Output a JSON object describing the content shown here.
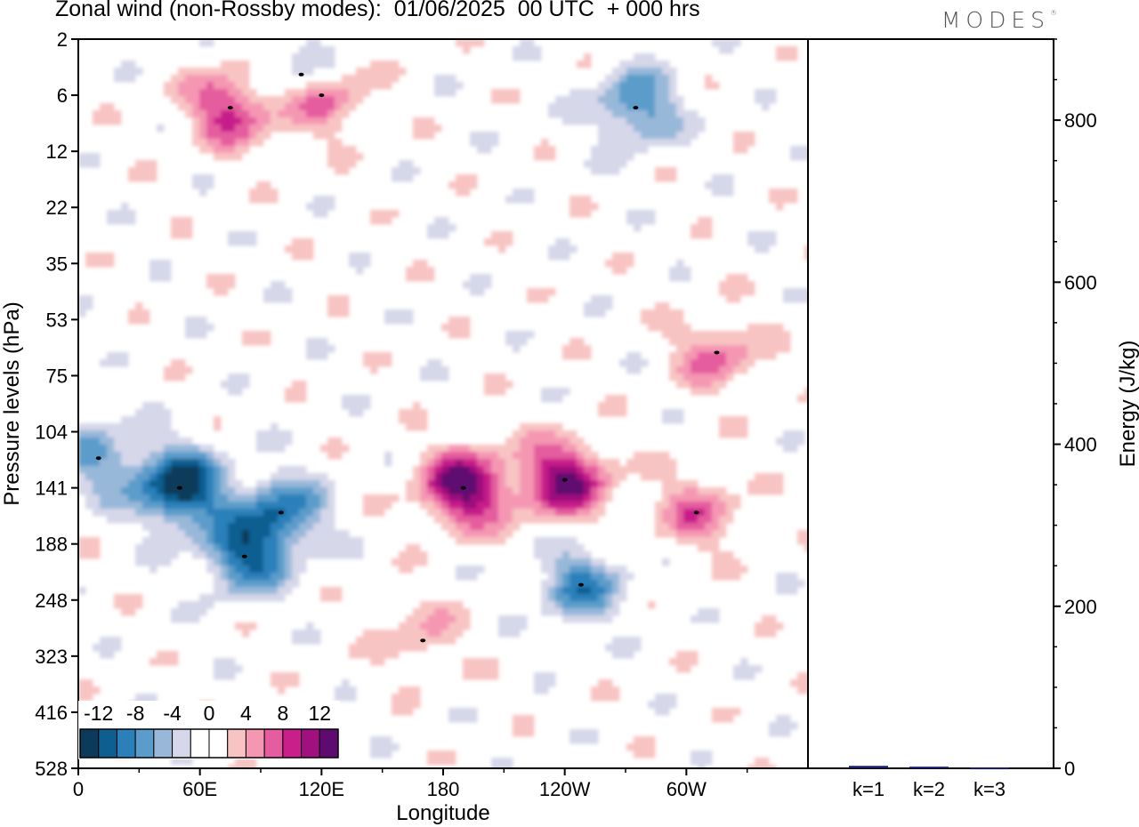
{
  "title": "Zonal wind (non-Rossby modes):  01/06/2025  00 UTC  + 000 hrs",
  "logo": "MODES",
  "logo_mark": "®",
  "chart_data": [
    {
      "type": "heatmap",
      "title": "Zonal wind (non-Rossby modes):  01/06/2025  00 UTC  + 000 hrs",
      "xlabel": "Longitude",
      "ylabel": "Pressure levels (hPa)",
      "x_ticks": [
        "0",
        "60E",
        "120E",
        "180",
        "120W",
        "60W"
      ],
      "x_tick_values": [
        0,
        60,
        120,
        180,
        240,
        300
      ],
      "xlim": [
        0,
        360
      ],
      "y_ticks": [
        "2",
        "6",
        "12",
        "22",
        "35",
        "53",
        "75",
        "104",
        "141",
        "188",
        "248",
        "323",
        "416",
        "528"
      ],
      "colorbar": {
        "labels": [
          "-12",
          "-8",
          "-4",
          "0",
          "4",
          "8",
          "12"
        ],
        "label_values": [
          -12,
          -8,
          -4,
          0,
          4,
          8,
          12
        ],
        "colors": [
          "#0b3a5a",
          "#0d5f92",
          "#2b80ba",
          "#5b9ccb",
          "#98b8d9",
          "#d6d7e9",
          "#ffffff",
          "#ffffff",
          "#f8c4c3",
          "#f597b3",
          "#e55d9e",
          "#c81f8a",
          "#a0107e",
          "#5e0a70"
        ]
      },
      "features": [
        {
          "lon": 50,
          "level": 141,
          "value": -14
        },
        {
          "lon": 82,
          "level": 200,
          "value": -10
        },
        {
          "lon": 100,
          "level": 160,
          "value": -9
        },
        {
          "lon": 10,
          "level": 120,
          "value": -6
        },
        {
          "lon": 248,
          "level": 230,
          "value": -8
        },
        {
          "lon": 275,
          "level": 7,
          "value": -8
        },
        {
          "lon": 110,
          "level": 4,
          "value": -6
        },
        {
          "lon": 190,
          "level": 141,
          "value": 13
        },
        {
          "lon": 240,
          "level": 135,
          "value": 12
        },
        {
          "lon": 75,
          "level": 7,
          "value": 9
        },
        {
          "lon": 120,
          "level": 6,
          "value": 8
        },
        {
          "lon": 305,
          "level": 160,
          "value": 6
        },
        {
          "lon": 170,
          "level": 300,
          "value": 4
        },
        {
          "lon": 315,
          "level": 65,
          "value": 6
        }
      ]
    },
    {
      "type": "bar",
      "categories": [
        "k=1",
        "k=2",
        "k=3"
      ],
      "values": [
        3,
        2,
        1
      ],
      "ylabel": "Energy (J/kg)",
      "ylim": [
        0,
        900
      ],
      "y_ticks": [
        "0",
        "200",
        "400",
        "600",
        "800"
      ],
      "y_tick_values": [
        0,
        200,
        400,
        600,
        800
      ],
      "bar_color": "#1a1a6e"
    }
  ]
}
